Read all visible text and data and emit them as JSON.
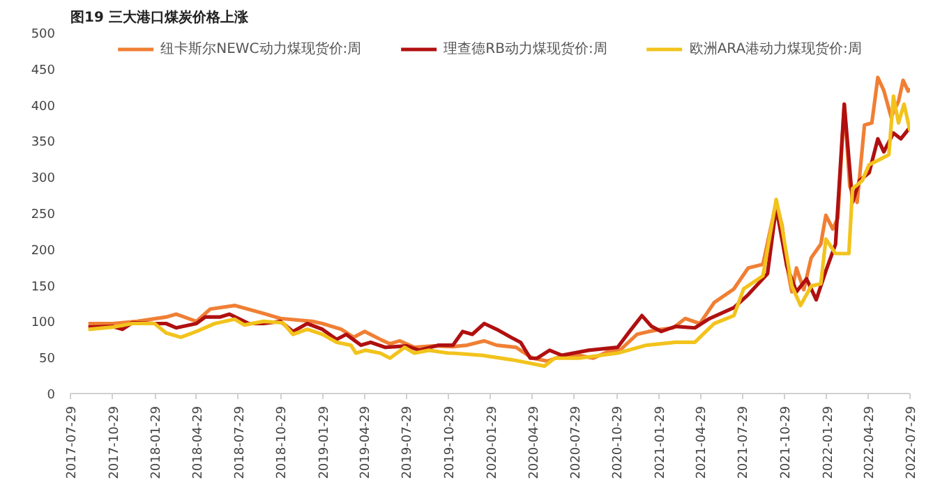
{
  "chart_data": {
    "type": "line",
    "title": "图19 三大港口煤炭价格上涨",
    "xlim": [
      "2017-07-29",
      "2022-07-29"
    ],
    "xticks": [
      "2017-07-29",
      "2017-10-29",
      "2018-01-29",
      "2018-04-29",
      "2018-07-29",
      "2018-10-29",
      "2019-01-29",
      "2019-04-29",
      "2019-07-29",
      "2019-10-29",
      "2020-01-29",
      "2020-04-29",
      "2020-07-29",
      "2020-10-29",
      "2021-01-29",
      "2021-04-29",
      "2021-07-29",
      "2021-10-29",
      "2022-01-29",
      "2022-04-29",
      "2022-07-29"
    ],
    "ylim": [
      0,
      500
    ],
    "yticks": [
      0,
      50,
      100,
      150,
      200,
      250,
      300,
      350,
      400,
      450,
      500
    ],
    "grid": false,
    "legend": "top",
    "series": [
      {
        "name": "纽卡斯尔NEWC动力煤现货价:周",
        "color": "#f07f34",
        "x": [
          "2017-09-06",
          "2017-10-29",
          "2017-12-21",
          "2018-02-22",
          "2018-03-16",
          "2018-04-29",
          "2018-05-29",
          "2018-07-21",
          "2018-09-22",
          "2018-10-29",
          "2019-01-06",
          "2019-01-28",
          "2019-03-10",
          "2019-04-06",
          "2019-04-30",
          "2019-06-03",
          "2019-06-24",
          "2019-07-15",
          "2019-08-16",
          "2019-09-27",
          "2019-11-08",
          "2019-12-09",
          "2020-01-15",
          "2020-02-11",
          "2020-03-24",
          "2020-04-29",
          "2020-05-31",
          "2020-07-07",
          "2020-08-08",
          "2020-09-08",
          "2020-10-10",
          "2020-11-05",
          "2020-12-12",
          "2021-01-07",
          "2021-02-03",
          "2021-03-01",
          "2021-03-27",
          "2021-04-28",
          "2021-05-29",
          "2021-07-11",
          "2021-08-11",
          "2021-09-12",
          "2021-10-11",
          "2021-10-24",
          "2021-11-03",
          "2021-11-14",
          "2021-11-24",
          "2021-12-10",
          "2021-12-26",
          "2022-01-16",
          "2022-01-27",
          "2022-02-11",
          "2022-02-22",
          "2022-03-08",
          "2022-03-20",
          "2022-04-05",
          "2022-04-21",
          "2022-05-07",
          "2022-05-20",
          "2022-06-02",
          "2022-06-18",
          "2022-07-04",
          "2022-07-14",
          "2022-07-25",
          "2022-07-29"
        ],
        "values": [
          97,
          97,
          100,
          106,
          110,
          100,
          117,
          122,
          111,
          104,
          100,
          97,
          89,
          78,
          86,
          75,
          69,
          73,
          64,
          66,
          65,
          67,
          73,
          67,
          64,
          49,
          45,
          53,
          53,
          49,
          58,
          60,
          82,
          86,
          89,
          91,
          104,
          97,
          126,
          145,
          174,
          179,
          265,
          232,
          177,
          141,
          174,
          144,
          188,
          207,
          247,
          228,
          243,
          401,
          287,
          265,
          372,
          375,
          438,
          420,
          383,
          405,
          434,
          419,
          423
        ]
      },
      {
        "name": "理查德RB动力煤现货价:周",
        "color": "#b01010",
        "x": [
          "2017-09-06",
          "2017-10-29",
          "2017-11-19",
          "2017-12-10",
          "2018-01-28",
          "2018-02-22",
          "2018-03-16",
          "2018-04-29",
          "2018-05-18",
          "2018-06-19",
          "2018-07-10",
          "2018-08-21",
          "2018-09-22",
          "2018-10-29",
          "2018-11-25",
          "2018-12-26",
          "2019-01-28",
          "2019-02-28",
          "2019-03-21",
          "2019-04-22",
          "2019-05-13",
          "2019-06-14",
          "2019-07-30",
          "2019-08-27",
          "2019-10-08",
          "2019-11-08",
          "2019-11-29",
          "2019-12-20",
          "2020-01-15",
          "2020-02-11",
          "2020-03-13",
          "2020-04-03",
          "2020-04-24",
          "2020-05-09",
          "2020-06-05",
          "2020-07-02",
          "2020-08-29",
          "2020-10-31",
          "2020-11-26",
          "2020-12-23",
          "2021-01-13",
          "2021-02-03",
          "2021-03-06",
          "2021-04-17",
          "2021-05-19",
          "2021-07-11",
          "2021-08-11",
          "2021-09-22",
          "2021-10-11",
          "2021-11-03",
          "2021-11-24",
          "2021-12-16",
          "2022-01-06",
          "2022-01-27",
          "2022-02-17",
          "2022-03-08",
          "2022-03-26",
          "2022-04-10",
          "2022-05-01",
          "2022-05-20",
          "2022-06-02",
          "2022-06-23",
          "2022-07-09",
          "2022-07-29"
        ],
        "values": [
          92,
          93,
          89,
          98,
          97,
          97,
          91,
          97,
          106,
          106,
          110,
          97,
          97,
          100,
          86,
          97,
          89,
          75,
          82,
          67,
          71,
          64,
          66,
          60,
          67,
          67,
          86,
          82,
          97,
          89,
          78,
          71,
          49,
          49,
          60,
          53,
          60,
          64,
          86,
          108,
          93,
          86,
          93,
          91,
          104,
          119,
          137,
          166,
          258,
          177,
          141,
          159,
          130,
          170,
          207,
          401,
          265,
          295,
          306,
          353,
          335,
          361,
          353,
          369
        ]
      },
      {
        "name": "欧洲ARA港动力煤现货价:周",
        "color": "#f2c31c",
        "x": [
          "2017-09-06",
          "2017-10-29",
          "2017-12-10",
          "2018-01-28",
          "2018-02-22",
          "2018-03-26",
          "2018-04-29",
          "2018-06-08",
          "2018-07-21",
          "2018-08-11",
          "2018-09-22",
          "2018-11-03",
          "2018-11-25",
          "2018-12-26",
          "2019-01-28",
          "2019-02-28",
          "2019-03-31",
          "2019-04-11",
          "2019-05-02",
          "2019-06-03",
          "2019-06-24",
          "2019-07-26",
          "2019-08-16",
          "2019-09-17",
          "2019-10-29",
          "2019-11-08",
          "2020-01-10",
          "2020-03-13",
          "2020-04-24",
          "2020-05-25",
          "2020-06-16",
          "2020-08-08",
          "2020-10-31",
          "2021-01-02",
          "2021-03-06",
          "2021-04-17",
          "2021-05-29",
          "2021-07-11",
          "2021-08-01",
          "2021-09-12",
          "2021-10-11",
          "2021-10-24",
          "2021-11-14",
          "2021-12-03",
          "2021-12-26",
          "2022-01-16",
          "2022-01-27",
          "2022-02-17",
          "2022-03-18",
          "2022-03-26",
          "2022-04-16",
          "2022-05-01",
          "2022-05-23",
          "2022-06-13",
          "2022-06-23",
          "2022-07-04",
          "2022-07-16",
          "2022-07-29"
        ],
        "values": [
          89,
          92,
          97,
          97,
          84,
          78,
          86,
          97,
          103,
          95,
          100,
          98,
          82,
          89,
          82,
          71,
          67,
          56,
          60,
          56,
          49,
          64,
          56,
          60,
          56,
          56,
          53,
          47,
          42,
          38,
          49,
          49,
          56,
          67,
          71,
          71,
          97,
          108,
          145,
          163,
          269,
          229,
          149,
          122,
          149,
          152,
          214,
          194,
          194,
          284,
          295,
          317,
          324,
          331,
          412,
          375,
          401,
          364
        ]
      }
    ]
  }
}
